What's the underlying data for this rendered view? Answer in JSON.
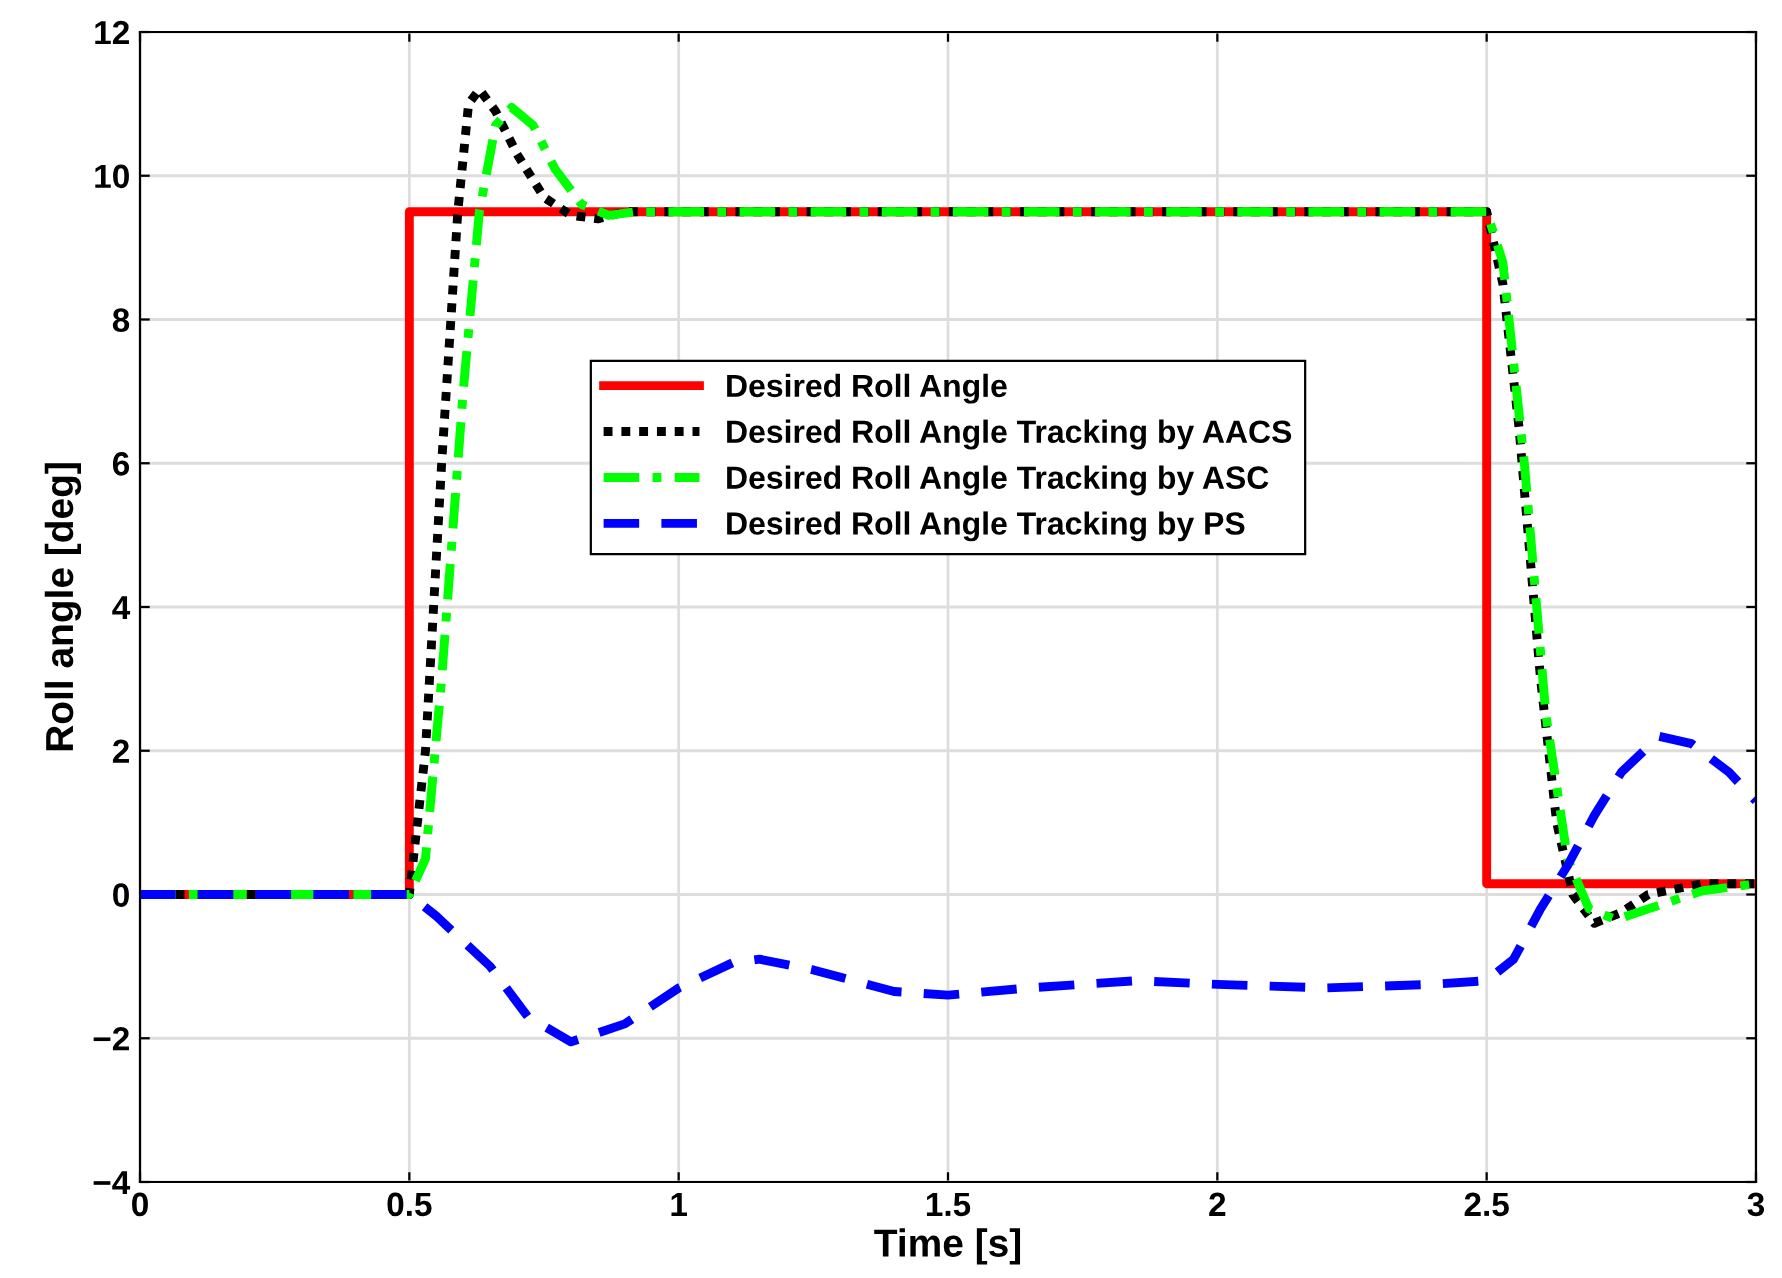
{
  "chart_data": {
    "type": "line",
    "xlabel": "Time [s]",
    "ylabel": "Roll angle [deg]",
    "xlim": [
      0,
      3
    ],
    "ylim": [
      -4,
      12
    ],
    "xticks": [
      0,
      0.5,
      1,
      1.5,
      2,
      2.5,
      3
    ],
    "yticks": [
      -4,
      -2,
      0,
      2,
      4,
      6,
      8,
      10,
      12
    ],
    "grid": true,
    "legend": "center",
    "series": [
      {
        "name": "Desired Roll Angle",
        "color": "#ff0000",
        "line_style": "solid",
        "x": [
          0,
          0.5,
          0.5,
          2.5,
          2.5,
          3
        ],
        "values": [
          0,
          0,
          9.5,
          9.5,
          0.15,
          0.15
        ]
      },
      {
        "name": "Desired Roll Angle Tracking by AACS",
        "color": "#000000",
        "line_style": "dotted",
        "x": [
          0,
          0.5,
          0.53,
          0.56,
          0.59,
          0.61,
          0.63,
          0.66,
          0.7,
          0.75,
          0.8,
          0.85,
          0.9,
          1.0,
          2.5,
          2.53,
          2.56,
          2.6,
          2.63,
          2.66,
          2.7,
          2.75,
          2.8,
          2.9,
          3.0
        ],
        "values": [
          0,
          0,
          2,
          6,
          9.5,
          11,
          11.2,
          10.9,
          10.3,
          9.7,
          9.45,
          9.4,
          9.5,
          9.5,
          9.5,
          8.5,
          6.5,
          3,
          1,
          0,
          -0.4,
          -0.25,
          0,
          0.15,
          0.15
        ]
      },
      {
        "name": "Desired Roll Angle Tracking by ASC",
        "color": "#00ff00",
        "line_style": "dashdot",
        "x": [
          0,
          0.5,
          0.53,
          0.56,
          0.6,
          0.63,
          0.66,
          0.69,
          0.73,
          0.77,
          0.82,
          0.87,
          0.92,
          1.0,
          2.5,
          2.53,
          2.57,
          2.61,
          2.65,
          2.69,
          2.74,
          2.8,
          2.9,
          3.0
        ],
        "values": [
          0,
          0,
          0.5,
          3,
          7,
          9.5,
          10.7,
          10.95,
          10.7,
          10.1,
          9.6,
          9.45,
          9.5,
          9.5,
          9.5,
          8.8,
          6,
          2.5,
          0.5,
          -0.2,
          -0.35,
          -0.2,
          0.05,
          0.15
        ]
      },
      {
        "name": "Desired Roll Angle Tracking by PS",
        "color": "#0000ff",
        "line_style": "dashed",
        "x": [
          0,
          0.5,
          0.55,
          0.65,
          0.72,
          0.8,
          0.9,
          1.0,
          1.1,
          1.15,
          1.25,
          1.4,
          1.5,
          1.65,
          1.85,
          2.0,
          2.2,
          2.4,
          2.5,
          2.55,
          2.6,
          2.65,
          2.7,
          2.75,
          2.82,
          2.88,
          2.95,
          3.0
        ],
        "values": [
          0,
          0,
          -0.3,
          -1.0,
          -1.7,
          -2.05,
          -1.8,
          -1.3,
          -0.95,
          -0.9,
          -1.05,
          -1.35,
          -1.4,
          -1.3,
          -1.2,
          -1.25,
          -1.3,
          -1.25,
          -1.2,
          -0.9,
          -0.2,
          0.4,
          1.1,
          1.7,
          2.2,
          2.1,
          1.7,
          1.3
        ]
      }
    ]
  }
}
